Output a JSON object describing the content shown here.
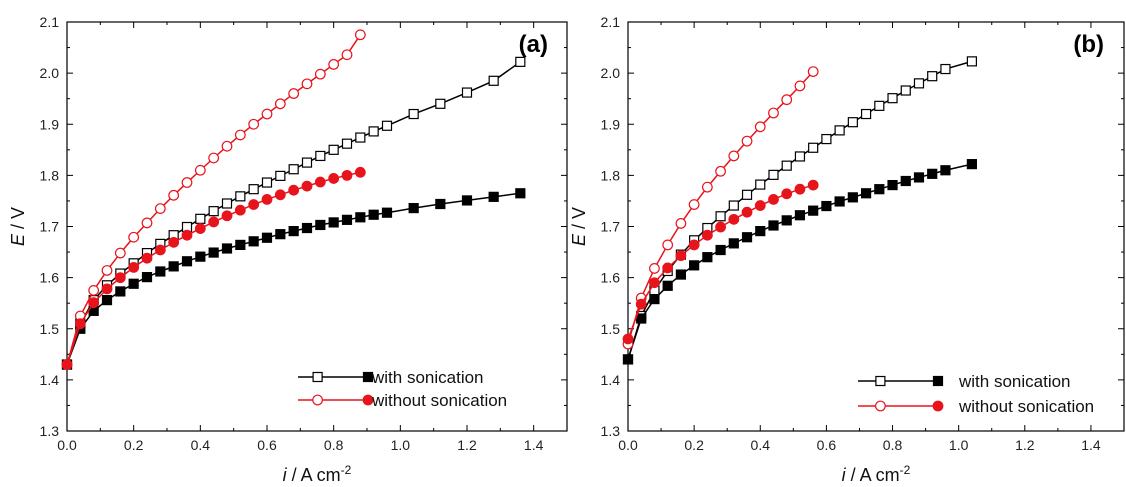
{
  "chart_data": [
    {
      "type": "line",
      "panel_label": "(a)",
      "xlabel_italic": "i",
      "xlabel_rest": " / A cm",
      "xlabel_sup": "-2",
      "ylabel_italic": "E",
      "ylabel_rest": " / V",
      "xlim": [
        0,
        1.5
      ],
      "ylim": [
        1.3,
        2.1
      ],
      "xticks": [
        "0.0",
        "0.2",
        "0.4",
        "0.6",
        "0.8",
        "1.0",
        "1.2",
        "1.4"
      ],
      "yticks": [
        "1.3",
        "1.4",
        "1.5",
        "1.6",
        "1.7",
        "1.8",
        "1.9",
        "2.0",
        "2.1"
      ],
      "legend_position": "bottom-right",
      "series": [
        {
          "name": "with sonication",
          "color": "#000000",
          "curve": "open",
          "x": [
            0.0,
            0.04,
            0.08,
            0.12,
            0.16,
            0.2,
            0.24,
            0.28,
            0.32,
            0.36,
            0.4,
            0.44,
            0.48,
            0.52,
            0.56,
            0.6,
            0.64,
            0.68,
            0.72,
            0.76,
            0.8,
            0.84,
            0.88,
            0.92,
            0.96,
            1.04,
            1.12,
            1.2,
            1.28,
            1.36
          ],
          "y": [
            1.43,
            1.51,
            1.556,
            1.585,
            1.608,
            1.628,
            1.648,
            1.666,
            1.683,
            1.699,
            1.715,
            1.73,
            1.745,
            1.759,
            1.773,
            1.786,
            1.799,
            1.812,
            1.825,
            1.838,
            1.85,
            1.862,
            1.874,
            1.886,
            1.897,
            1.92,
            1.94,
            1.962,
            1.985,
            2.022
          ]
        },
        {
          "name": "with sonication",
          "color": "#000000",
          "curve": "filled",
          "x": [
            0.0,
            0.04,
            0.08,
            0.12,
            0.16,
            0.2,
            0.24,
            0.28,
            0.32,
            0.36,
            0.4,
            0.44,
            0.48,
            0.52,
            0.56,
            0.6,
            0.64,
            0.68,
            0.72,
            0.76,
            0.8,
            0.84,
            0.88,
            0.92,
            0.96,
            1.04,
            1.12,
            1.2,
            1.28,
            1.36
          ],
          "y": [
            1.43,
            1.5,
            1.535,
            1.556,
            1.573,
            1.588,
            1.601,
            1.612,
            1.622,
            1.632,
            1.641,
            1.649,
            1.657,
            1.664,
            1.671,
            1.678,
            1.685,
            1.691,
            1.697,
            1.703,
            1.708,
            1.713,
            1.718,
            1.723,
            1.727,
            1.736,
            1.744,
            1.751,
            1.758,
            1.765
          ]
        },
        {
          "name": "without sonication",
          "color": "#e8141c",
          "curve": "open",
          "x": [
            0.0,
            0.04,
            0.08,
            0.12,
            0.16,
            0.2,
            0.24,
            0.28,
            0.32,
            0.36,
            0.4,
            0.44,
            0.48,
            0.52,
            0.56,
            0.6,
            0.64,
            0.68,
            0.72,
            0.76,
            0.8,
            0.84,
            0.88
          ],
          "y": [
            1.43,
            1.525,
            1.575,
            1.614,
            1.648,
            1.679,
            1.707,
            1.735,
            1.761,
            1.786,
            1.81,
            1.834,
            1.857,
            1.879,
            1.9,
            1.92,
            1.94,
            1.96,
            1.979,
            1.998,
            2.017,
            2.036,
            2.075
          ]
        },
        {
          "name": "without sonication",
          "color": "#e8141c",
          "curve": "filled",
          "x": [
            0.0,
            0.04,
            0.08,
            0.12,
            0.16,
            0.2,
            0.24,
            0.28,
            0.32,
            0.36,
            0.4,
            0.44,
            0.48,
            0.52,
            0.56,
            0.6,
            0.64,
            0.68,
            0.72,
            0.76,
            0.8,
            0.84,
            0.88
          ],
          "y": [
            1.43,
            1.51,
            1.551,
            1.578,
            1.6,
            1.62,
            1.638,
            1.654,
            1.669,
            1.683,
            1.696,
            1.709,
            1.721,
            1.732,
            1.743,
            1.753,
            1.762,
            1.771,
            1.779,
            1.787,
            1.794,
            1.8,
            1.806
          ]
        }
      ],
      "legend": [
        {
          "label": "with sonication",
          "color": "#000000"
        },
        {
          "label": "without sonication",
          "color": "#e8141c"
        }
      ]
    },
    {
      "type": "line",
      "panel_label": "(b)",
      "xlabel_italic": "i",
      "xlabel_rest": " / A cm",
      "xlabel_sup": "-2",
      "ylabel_italic": "E",
      "ylabel_rest": " / V",
      "xlim": [
        0,
        1.5
      ],
      "ylim": [
        1.3,
        2.1
      ],
      "xticks": [
        "0.0",
        "0.2",
        "0.4",
        "0.6",
        "0.8",
        "1.0",
        "1.2",
        "1.4"
      ],
      "yticks": [
        "1.3",
        "1.4",
        "1.5",
        "1.6",
        "1.7",
        "1.8",
        "1.9",
        "2.0",
        "2.1"
      ],
      "legend_position": "bottom-right",
      "series": [
        {
          "name": "with sonication",
          "color": "#000000",
          "curve": "open",
          "x": [
            0.0,
            0.04,
            0.08,
            0.12,
            0.16,
            0.2,
            0.24,
            0.28,
            0.32,
            0.36,
            0.4,
            0.44,
            0.48,
            0.52,
            0.56,
            0.6,
            0.64,
            0.68,
            0.72,
            0.76,
            0.8,
            0.84,
            0.88,
            0.92,
            0.96,
            1.04
          ],
          "y": [
            1.44,
            1.525,
            1.575,
            1.613,
            1.645,
            1.673,
            1.697,
            1.72,
            1.741,
            1.762,
            1.782,
            1.801,
            1.819,
            1.837,
            1.854,
            1.871,
            1.888,
            1.904,
            1.92,
            1.936,
            1.951,
            1.966,
            1.98,
            1.994,
            2.008,
            2.023
          ]
        },
        {
          "name": "with sonication",
          "color": "#000000",
          "curve": "filled",
          "x": [
            0.0,
            0.04,
            0.08,
            0.12,
            0.16,
            0.2,
            0.24,
            0.28,
            0.32,
            0.36,
            0.4,
            0.44,
            0.48,
            0.52,
            0.56,
            0.6,
            0.64,
            0.68,
            0.72,
            0.76,
            0.8,
            0.84,
            0.88,
            0.92,
            0.96,
            1.04
          ],
          "y": [
            1.44,
            1.52,
            1.558,
            1.584,
            1.606,
            1.624,
            1.64,
            1.654,
            1.667,
            1.679,
            1.691,
            1.702,
            1.712,
            1.722,
            1.731,
            1.74,
            1.749,
            1.757,
            1.765,
            1.773,
            1.781,
            1.789,
            1.796,
            1.803,
            1.81,
            1.822
          ]
        },
        {
          "name": "without sonication",
          "color": "#e8141c",
          "curve": "open",
          "x": [
            0.0,
            0.04,
            0.08,
            0.12,
            0.16,
            0.2,
            0.24,
            0.28,
            0.32,
            0.36,
            0.4,
            0.44,
            0.48,
            0.52,
            0.56
          ],
          "y": [
            1.47,
            1.56,
            1.618,
            1.664,
            1.706,
            1.743,
            1.777,
            1.808,
            1.838,
            1.867,
            1.895,
            1.922,
            1.948,
            1.975,
            2.003
          ]
        },
        {
          "name": "without sonication",
          "color": "#e8141c",
          "curve": "filled",
          "x": [
            0.0,
            0.04,
            0.08,
            0.12,
            0.16,
            0.2,
            0.24,
            0.28,
            0.32,
            0.36,
            0.4,
            0.44,
            0.48,
            0.52,
            0.56
          ],
          "y": [
            1.48,
            1.548,
            1.59,
            1.619,
            1.643,
            1.664,
            1.683,
            1.699,
            1.714,
            1.728,
            1.741,
            1.753,
            1.764,
            1.773,
            1.781
          ]
        }
      ],
      "legend": [
        {
          "label": "with sonication",
          "color": "#000000"
        },
        {
          "label": "without sonication",
          "color": "#e8141c"
        }
      ]
    }
  ]
}
